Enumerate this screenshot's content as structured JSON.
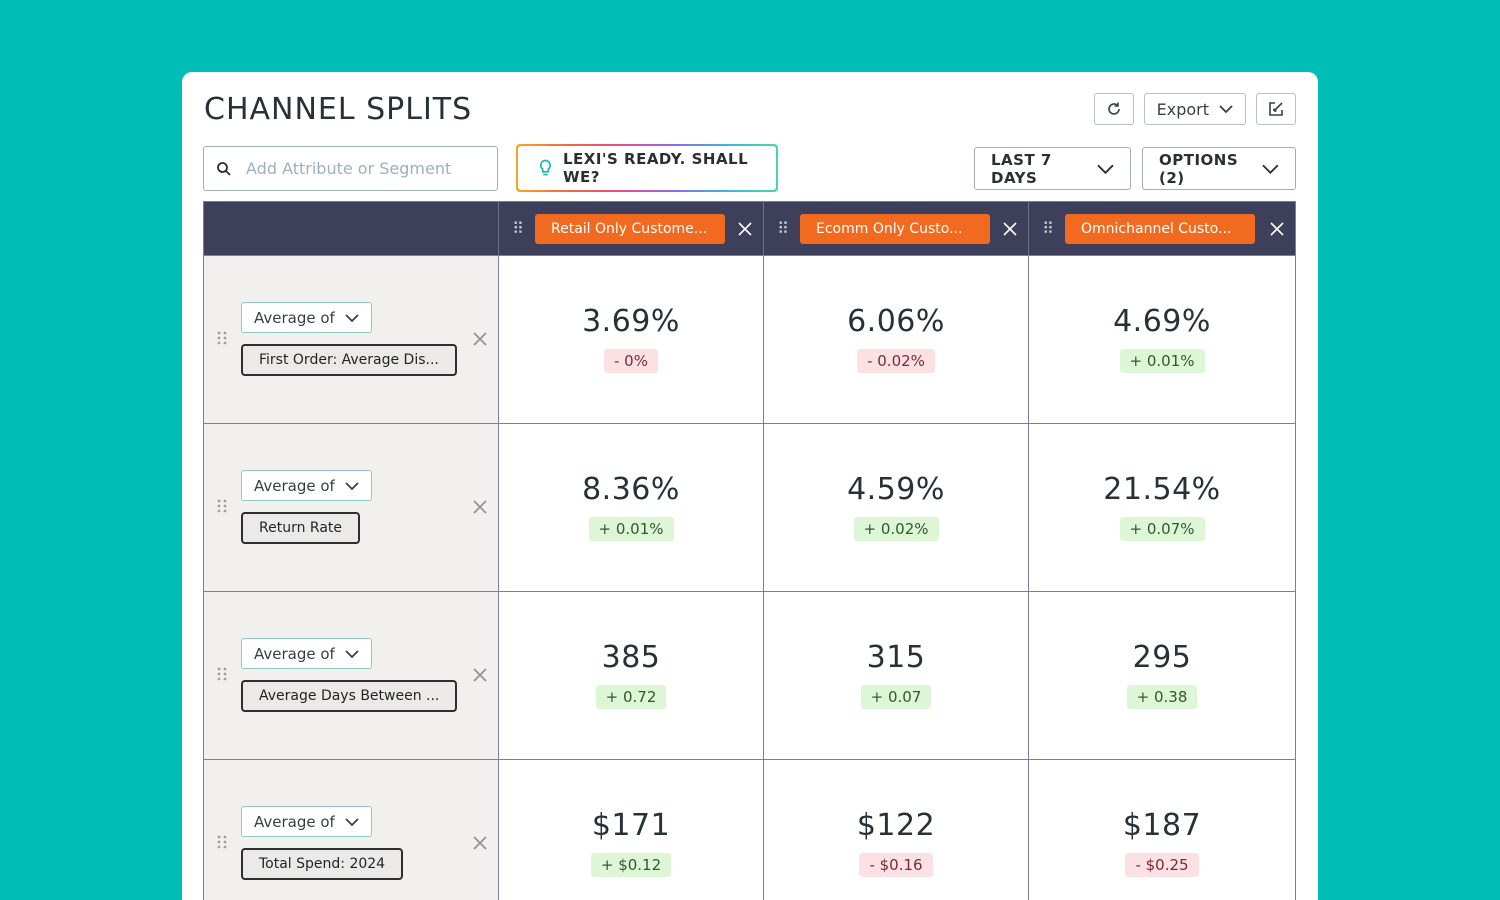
{
  "header": {
    "title": "CHANNEL SPLITS",
    "export_label": "Export"
  },
  "toolbar": {
    "search_placeholder": "Add Attribute or Segment",
    "lexi_label": "LEXI'S READY. SHALL WE?",
    "date_range": "LAST 7 DAYS",
    "options": "OPTIONS (2)"
  },
  "segments": [
    {
      "label": "Retail Only Custome..."
    },
    {
      "label": "Ecomm Only Custo..."
    },
    {
      "label": "Omnichannel Custo..."
    }
  ],
  "rows": [
    {
      "aggregation": "Average of",
      "metric": "First Order: Average Dis...",
      "cells": [
        {
          "value": "3.69%",
          "delta": "- 0%",
          "trend": "neg"
        },
        {
          "value": "6.06%",
          "delta": "- 0.02%",
          "trend": "neg"
        },
        {
          "value": "4.69%",
          "delta": "+ 0.01%",
          "trend": "pos"
        }
      ]
    },
    {
      "aggregation": "Average of",
      "metric": "Return Rate",
      "cells": [
        {
          "value": "8.36%",
          "delta": "+ 0.01%",
          "trend": "pos"
        },
        {
          "value": "4.59%",
          "delta": "+ 0.02%",
          "trend": "pos"
        },
        {
          "value": "21.54%",
          "delta": "+ 0.07%",
          "trend": "pos"
        }
      ]
    },
    {
      "aggregation": "Average of",
      "metric": "Average Days Between ...",
      "cells": [
        {
          "value": "385",
          "delta": "+ 0.72",
          "trend": "pos"
        },
        {
          "value": "315",
          "delta": "+ 0.07",
          "trend": "pos"
        },
        {
          "value": "295",
          "delta": "+ 0.38",
          "trend": "pos"
        }
      ]
    },
    {
      "aggregation": "Average of",
      "metric": "Total Spend: 2024",
      "cells": [
        {
          "value": "$171",
          "delta": "+ $0.12",
          "trend": "pos"
        },
        {
          "value": "$122",
          "delta": "- $0.16",
          "trend": "neg"
        },
        {
          "value": "$187",
          "delta": "- $0.25",
          "trend": "neg"
        }
      ]
    }
  ],
  "colors": {
    "background": "#00bdb6",
    "segment_pill": "#f26a1f",
    "header_bar": "#3e3f5b",
    "positive_bg": "#dcf6d6",
    "negative_bg": "#fbe1e4"
  },
  "icons": {
    "refresh": "refresh-icon",
    "expand": "external-edit-icon",
    "search": "search-icon",
    "lexi": "lightbulb-icon",
    "drag": "drag-handle-icon",
    "remove": "close-icon",
    "dropdown": "chevron-down-icon"
  }
}
